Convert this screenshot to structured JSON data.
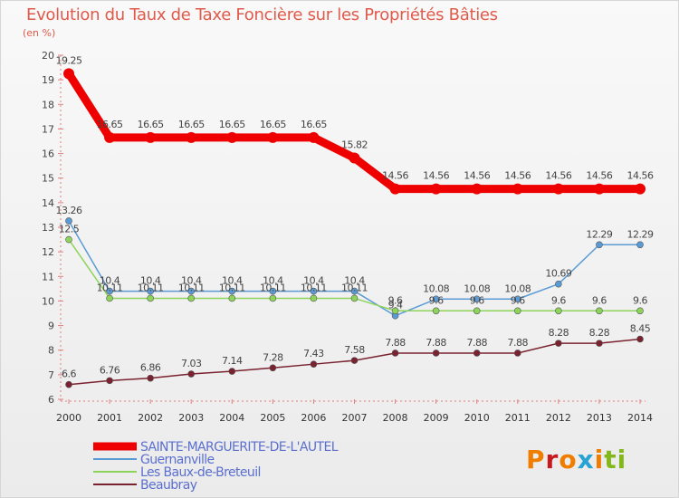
{
  "title": "Evolution du Taux de Taxe Foncière sur les Propriétés Bâties",
  "unit_label": "(en %)",
  "logo": {
    "text": "Proxiti",
    "colors": [
      "#ef7d00",
      "#c8181f",
      "#ef7d00",
      "#29a3d4",
      "#ef7d00",
      "#83b81a",
      "#83b81a"
    ]
  },
  "chart_data": {
    "type": "line",
    "title": "Evolution du Taux de Taxe Foncière sur les Propriétés Bâties",
    "ylabel": "(en %)",
    "xlabel": "",
    "ylim": [
      6,
      20
    ],
    "yticks": [
      6,
      7,
      8,
      9,
      10,
      11,
      12,
      13,
      14,
      15,
      16,
      17,
      18,
      19,
      20
    ],
    "grid": false,
    "legend_position": "bottom-left",
    "x": [
      "2000",
      "2001",
      "2002",
      "2003",
      "2004",
      "2005",
      "2006",
      "2007",
      "2008",
      "2009",
      "2010",
      "2011",
      "2012",
      "2013",
      "2014"
    ],
    "series": [
      {
        "name": "SAINTE-MARGUERITE-DE-L'AUTEL",
        "color": "#ee0000",
        "values": [
          19.25,
          16.65,
          16.65,
          16.65,
          16.65,
          16.65,
          16.65,
          15.82,
          14.56,
          14.56,
          14.56,
          14.56,
          14.56,
          14.56,
          14.56
        ],
        "labels": [
          "19.25",
          "16.65",
          "16.65",
          "16.65",
          "16.65",
          "16.65",
          "16.65",
          "15.82",
          "14.56",
          "14.56",
          "14.56",
          "14.56",
          "14.56",
          "14.56",
          "14.56"
        ]
      },
      {
        "name": "Guernanville",
        "color": "#5b9bd5",
        "values": [
          13.26,
          10.4,
          10.4,
          10.4,
          10.4,
          10.4,
          10.4,
          10.4,
          9.4,
          10.08,
          10.08,
          10.08,
          10.69,
          12.29,
          12.29
        ],
        "labels": [
          "13.26",
          "10.4",
          "10.4",
          "10.4",
          "10.4",
          "10.4",
          "10.4",
          "10.4",
          "9.4",
          "10.08",
          "10.08",
          "10.08",
          "10.69",
          "12.29",
          "12.29"
        ]
      },
      {
        "name": "Les Baux-de-Breteuil",
        "color": "#8ed45a",
        "values": [
          12.5,
          10.11,
          10.11,
          10.11,
          10.11,
          10.11,
          10.11,
          10.11,
          9.6,
          9.6,
          9.6,
          9.6,
          9.6,
          9.6,
          9.6
        ],
        "labels": [
          "12.5",
          "10.11",
          "10.11",
          "10.11",
          "10.11",
          "10.11",
          "10.11",
          "10.11",
          "9.6",
          "9.6",
          "9.6",
          "9.6",
          "9.6",
          "9.6",
          "9.6"
        ]
      },
      {
        "name": "Beaubray",
        "color": "#7a2230",
        "values": [
          6.6,
          6.76,
          6.86,
          7.03,
          7.14,
          7.28,
          7.43,
          7.58,
          7.88,
          7.88,
          7.88,
          7.88,
          8.28,
          8.28,
          8.45
        ],
        "labels": [
          "6.6",
          "6.76",
          "6.86",
          "7.03",
          "7.14",
          "7.28",
          "7.43",
          "7.58",
          "7.88",
          "7.88",
          "7.88",
          "7.88",
          "8.28",
          "8.28",
          "8.45"
        ]
      }
    ]
  }
}
